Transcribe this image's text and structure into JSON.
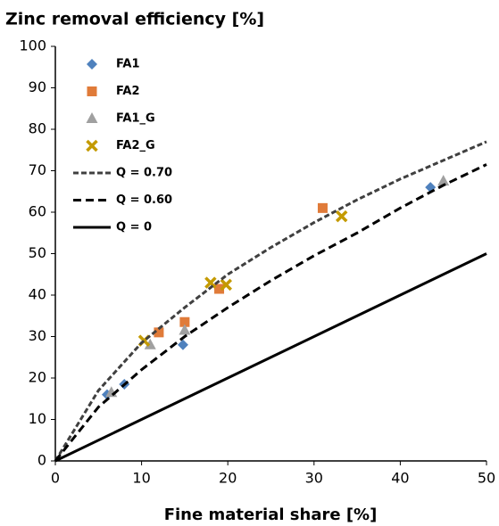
{
  "chart_data": {
    "type": "scatter",
    "title": "Zinc removal efficiency [%]",
    "x_label": "Fine material share [%]",
    "xlim": [
      0,
      50
    ],
    "xticks": [
      0,
      10,
      20,
      30,
      40,
      50
    ],
    "ylim": [
      0,
      100
    ],
    "yticks": [
      0,
      10,
      20,
      30,
      40,
      50,
      60,
      70,
      80,
      90,
      100
    ],
    "grid": false,
    "legend": "upper left",
    "series": [
      {
        "name": "FA1",
        "color": "#4f81bd",
        "marker": "diamond",
        "x": [
          6,
          8,
          14.8,
          43.5
        ],
        "values": [
          16,
          18.5,
          28,
          66
        ]
      },
      {
        "name": "FA2",
        "color": "#e07b39",
        "marker": "square",
        "x": [
          12,
          15,
          19,
          31
        ],
        "values": [
          31,
          33.5,
          41.5,
          61
        ]
      },
      {
        "name": "FA1_G",
        "color": "#a0a0a0",
        "marker": "triangle",
        "x": [
          6.5,
          11,
          15,
          45
        ],
        "values": [
          16.5,
          28,
          31.5,
          67.5
        ]
      },
      {
        "name": "FA2_G",
        "color": "#c49a00",
        "marker": "x",
        "x": [
          10.3,
          18,
          19.8,
          33.2
        ],
        "values": [
          29,
          43,
          42.5,
          59
        ]
      },
      {
        "name": "Q = 0.70",
        "color": "#404040",
        "line": "dashed",
        "x": [
          0,
          5,
          10,
          15,
          20,
          25,
          30,
          35,
          40,
          45,
          50
        ],
        "values": [
          0,
          17,
          28.5,
          37,
          45,
          51.5,
          57.5,
          63,
          68,
          72.5,
          77
        ]
      },
      {
        "name": "Q = 0.60",
        "color": "#000000",
        "line": "dashed",
        "x": [
          0,
          5,
          10,
          15,
          20,
          25,
          30,
          35,
          40,
          45,
          50
        ],
        "values": [
          0,
          13,
          22,
          30,
          37,
          43.5,
          49.5,
          55,
          61,
          66.5,
          71.5
        ]
      },
      {
        "name": "Q = 0",
        "color": "#000000",
        "line": "solid",
        "x": [
          0,
          50
        ],
        "values": [
          0,
          50
        ]
      }
    ]
  }
}
